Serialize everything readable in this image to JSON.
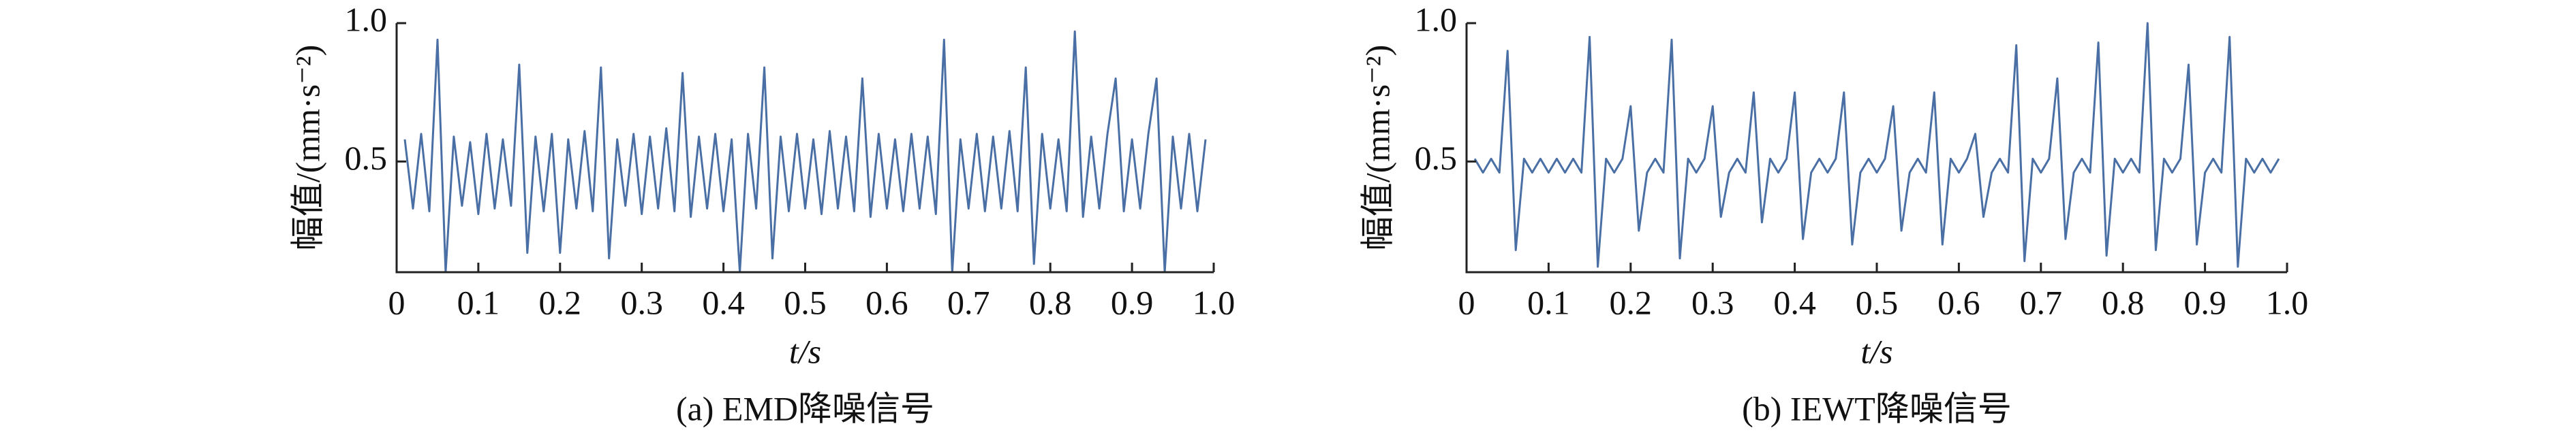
{
  "chart_data": [
    {
      "type": "line",
      "title": "(a) EMD降噪信号",
      "xlabel": "t/s",
      "ylabel": "幅值/(mm·s⁻²)",
      "xlim": [
        0,
        1
      ],
      "ylim": [
        0.1,
        1
      ],
      "xticks": [
        0,
        0.1,
        0.2,
        0.3,
        0.4,
        0.5,
        0.6,
        0.7,
        0.8,
        0.9,
        {
          "value": 1,
          "label": "1.0"
        }
      ],
      "yticks": [
        0.5,
        {
          "value": 1,
          "label": "1.0"
        }
      ],
      "x": [
        0.01,
        0.02,
        0.03,
        0.04,
        0.05,
        0.06,
        0.07,
        0.08,
        0.09,
        0.1,
        0.11,
        0.12,
        0.13,
        0.14,
        0.15,
        0.16,
        0.17,
        0.18,
        0.19,
        0.2,
        0.21,
        0.22,
        0.23,
        0.24,
        0.25,
        0.26,
        0.27,
        0.28,
        0.29,
        0.3,
        0.31,
        0.32,
        0.33,
        0.34,
        0.35,
        0.36,
        0.37,
        0.38,
        0.39,
        0.4,
        0.41,
        0.42,
        0.43,
        0.44,
        0.45,
        0.46,
        0.47,
        0.48,
        0.49,
        0.5,
        0.51,
        0.52,
        0.53,
        0.54,
        0.55,
        0.56,
        0.57,
        0.58,
        0.59,
        0.6,
        0.61,
        0.62,
        0.63,
        0.64,
        0.65,
        0.66,
        0.67,
        0.68,
        0.69,
        0.7,
        0.71,
        0.72,
        0.73,
        0.74,
        0.75,
        0.76,
        0.77,
        0.78,
        0.79,
        0.8,
        0.81,
        0.82,
        0.83,
        0.84,
        0.85,
        0.86,
        0.87,
        0.88,
        0.89,
        0.9,
        0.91,
        0.92,
        0.93,
        0.94,
        0.95,
        0.96,
        0.97,
        0.98,
        0.99
      ],
      "series": [
        {
          "color": "#4a6fa5",
          "values": [
            0.58,
            0.33,
            0.6,
            0.32,
            0.94,
            0.1,
            0.59,
            0.34,
            0.57,
            0.31,
            0.6,
            0.33,
            0.58,
            0.34,
            0.85,
            0.17,
            0.59,
            0.32,
            0.6,
            0.17,
            0.58,
            0.33,
            0.61,
            0.32,
            0.84,
            0.15,
            0.58,
            0.34,
            0.6,
            0.31,
            0.59,
            0.33,
            0.62,
            0.32,
            0.82,
            0.3,
            0.59,
            0.33,
            0.6,
            0.32,
            0.58,
            0.1,
            0.6,
            0.33,
            0.84,
            0.15,
            0.59,
            0.32,
            0.6,
            0.33,
            0.58,
            0.31,
            0.61,
            0.33,
            0.59,
            0.32,
            0.8,
            0.3,
            0.6,
            0.33,
            0.58,
            0.32,
            0.6,
            0.33,
            0.59,
            0.31,
            0.94,
            0.1,
            0.58,
            0.33,
            0.6,
            0.32,
            0.59,
            0.33,
            0.61,
            0.32,
            0.84,
            0.13,
            0.6,
            0.33,
            0.58,
            0.32,
            0.97,
            0.3,
            0.59,
            0.33,
            0.6,
            0.8,
            0.32,
            0.58,
            0.33,
            0.6,
            0.8,
            0.1,
            0.59,
            0.33,
            0.6,
            0.32,
            0.58
          ]
        }
      ]
    },
    {
      "type": "line",
      "title": "(b) IEWT降噪信号",
      "xlabel": "t/s",
      "ylabel": "幅值/(mm·s⁻²)",
      "xlim": [
        0,
        1
      ],
      "ylim": [
        0.1,
        1
      ],
      "xticks": [
        0,
        0.1,
        0.2,
        0.3,
        0.4,
        0.5,
        0.6,
        0.7,
        0.8,
        0.9,
        {
          "value": 1,
          "label": "1.0"
        }
      ],
      "yticks": [
        0.5,
        {
          "value": 1,
          "label": "1.0"
        }
      ],
      "x": [
        0.01,
        0.02,
        0.03,
        0.04,
        0.05,
        0.06,
        0.07,
        0.08,
        0.09,
        0.1,
        0.11,
        0.12,
        0.13,
        0.14,
        0.15,
        0.16,
        0.17,
        0.18,
        0.19,
        0.2,
        0.21,
        0.22,
        0.23,
        0.24,
        0.25,
        0.26,
        0.27,
        0.28,
        0.29,
        0.3,
        0.31,
        0.32,
        0.33,
        0.34,
        0.35,
        0.36,
        0.37,
        0.38,
        0.39,
        0.4,
        0.41,
        0.42,
        0.43,
        0.44,
        0.45,
        0.46,
        0.47,
        0.48,
        0.49,
        0.5,
        0.51,
        0.52,
        0.53,
        0.54,
        0.55,
        0.56,
        0.57,
        0.58,
        0.59,
        0.6,
        0.61,
        0.62,
        0.63,
        0.64,
        0.65,
        0.66,
        0.67,
        0.68,
        0.69,
        0.7,
        0.71,
        0.72,
        0.73,
        0.74,
        0.75,
        0.76,
        0.77,
        0.78,
        0.79,
        0.8,
        0.81,
        0.82,
        0.83,
        0.84,
        0.85,
        0.86,
        0.87,
        0.88,
        0.89,
        0.9,
        0.91,
        0.92,
        0.93,
        0.94,
        0.95,
        0.96,
        0.97,
        0.98,
        0.99
      ],
      "series": [
        {
          "color": "#4a6fa5",
          "values": [
            0.51,
            0.46,
            0.51,
            0.46,
            0.9,
            0.18,
            0.51,
            0.46,
            0.51,
            0.46,
            0.51,
            0.46,
            0.51,
            0.46,
            0.95,
            0.12,
            0.51,
            0.46,
            0.51,
            0.7,
            0.25,
            0.46,
            0.51,
            0.46,
            0.94,
            0.15,
            0.51,
            0.46,
            0.51,
            0.7,
            0.3,
            0.46,
            0.51,
            0.46,
            0.75,
            0.28,
            0.51,
            0.46,
            0.51,
            0.75,
            0.22,
            0.46,
            0.51,
            0.46,
            0.51,
            0.75,
            0.2,
            0.46,
            0.51,
            0.46,
            0.51,
            0.7,
            0.25,
            0.46,
            0.51,
            0.46,
            0.75,
            0.2,
            0.51,
            0.46,
            0.51,
            0.6,
            0.3,
            0.46,
            0.51,
            0.46,
            0.92,
            0.14,
            0.51,
            0.46,
            0.51,
            0.8,
            0.22,
            0.46,
            0.51,
            0.46,
            0.93,
            0.16,
            0.51,
            0.46,
            0.51,
            0.46,
            1.0,
            0.18,
            0.51,
            0.46,
            0.51,
            0.85,
            0.2,
            0.46,
            0.51,
            0.46,
            0.95,
            0.12,
            0.51,
            0.46,
            0.51,
            0.46,
            0.51
          ]
        }
      ]
    }
  ]
}
